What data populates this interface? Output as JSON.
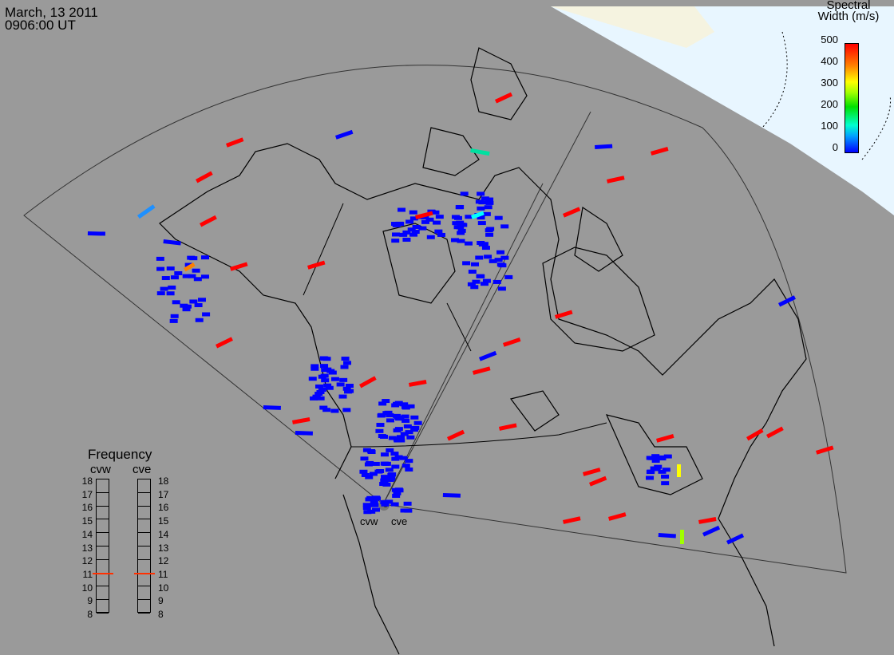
{
  "header": {
    "date": "March, 13 2011",
    "time": "0906:00 UT"
  },
  "legend": {
    "title_line1": "Spectral",
    "title_line2": "Width (m/s)",
    "ticks": [
      "500",
      "400",
      "300",
      "200",
      "100",
      "0"
    ],
    "range": [
      0,
      500
    ]
  },
  "frequency_panel": {
    "title": "Frequency",
    "radars": [
      {
        "name": "cvw",
        "value": 10.8
      },
      {
        "name": "cve",
        "value": 10.8
      }
    ],
    "levels": [
      "18",
      "17",
      "16",
      "15",
      "14",
      "13",
      "12",
      "11",
      "10",
      "9",
      "8"
    ]
  },
  "stations": {
    "west": "cvw",
    "east": "cve"
  },
  "colors": {
    "low": "#0000ff",
    "mid": "#00ff00",
    "high": "#ff0000",
    "night_side": "#9a9a9a",
    "day_side": "#e6f5ff"
  }
}
